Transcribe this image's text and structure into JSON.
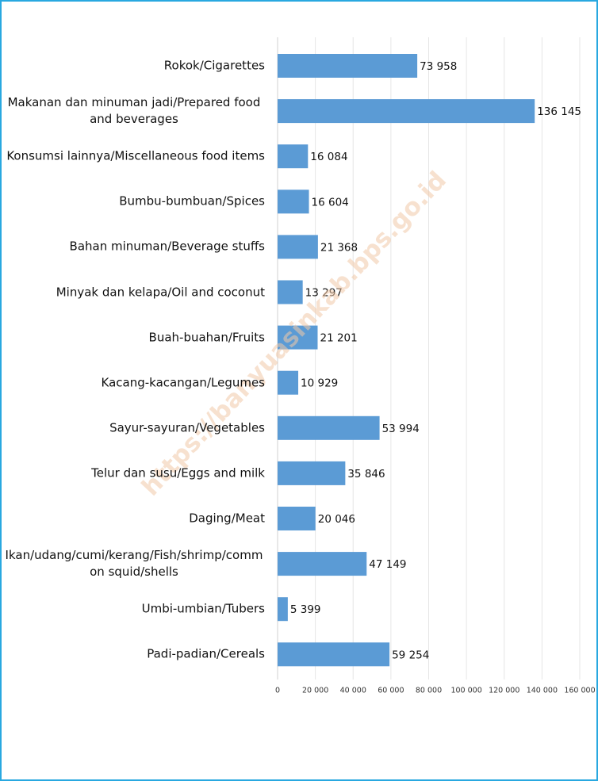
{
  "chart_data": {
    "type": "hbar",
    "watermark": "https://banyuasinkab.bps.go.id",
    "categories": [
      "Rokok/Cigarettes",
      "Makanan dan minuman jadi/Prepared food and beverages",
      "Konsumsi lainnya/Miscellaneous food items",
      "Bumbu-bumbuan/Spices",
      "Bahan minuman/Beverage stuffs",
      "Minyak dan kelapa/Oil and coconut",
      "Buah-buahan/Fruits",
      "Kacang-kacangan/Legumes",
      "Sayur-sayuran/Vegetables",
      "Telur dan susu/Eggs and milk",
      "Daging/Meat",
      "Ikan/udang/cumi/kerang/Fish/shrimp/common squid/shells",
      "Umbi-umbian/Tubers",
      "Padi-padian/Cereals"
    ],
    "values": [
      73958,
      136145,
      16084,
      16604,
      21368,
      13297,
      21201,
      10929,
      53994,
      35846,
      20046,
      47149,
      5399,
      59254
    ],
    "value_labels": [
      "73 958",
      "136 145",
      "16 084",
      "16 604",
      "21 368",
      "13 297",
      "21 201",
      "10 929",
      "53 994",
      "35 846",
      "20 046",
      "47 149",
      "5 399",
      "59 254"
    ],
    "color": "#5b9bd5",
    "xlim": [
      0,
      160000
    ],
    "xticks": [
      0,
      {
        "value": 20000,
        "label": "20 000"
      },
      {
        "value": 40000,
        "label": "40 000"
      },
      {
        "value": 60000,
        "label": "60 000"
      },
      {
        "value": 80000,
        "label": "80 000"
      },
      {
        "value": 100000,
        "label": "100 000"
      },
      {
        "value": 120000,
        "label": "120 000"
      },
      {
        "value": 140000,
        "label": "140 000"
      },
      {
        "value": 160000,
        "label": "160 000"
      }
    ],
    "grid": true
  }
}
